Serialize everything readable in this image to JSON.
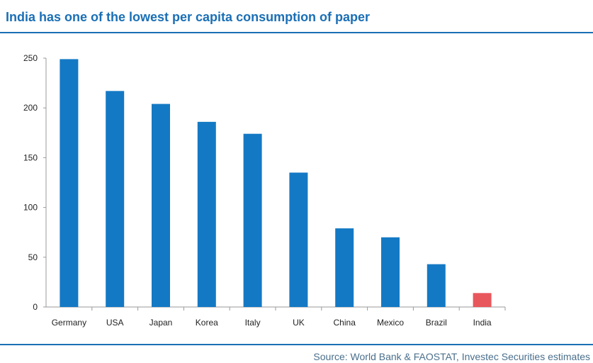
{
  "header": {
    "title": "India has one of the lowest per capita consumption of paper"
  },
  "footer": {
    "source": "Source: World Bank & FAOSTAT, Investec Securities estimates"
  },
  "colors": {
    "bar": "#1479c4",
    "highlight": "#e8575c",
    "accent": "#1a6fb5"
  },
  "chart_data": {
    "type": "bar",
    "title": "India has one of the lowest per capita consumption of paper",
    "xlabel": "",
    "ylabel": "",
    "ylim": [
      0,
      250
    ],
    "yticks": [
      0,
      50,
      100,
      150,
      200,
      250
    ],
    "grid": false,
    "legend": "none",
    "categories": [
      "Germany",
      "USA",
      "Japan",
      "Korea",
      "Italy",
      "UK",
      "China",
      "Mexico",
      "Brazil",
      "India"
    ],
    "values": [
      249,
      217,
      204,
      186,
      174,
      135,
      79,
      70,
      43,
      14
    ],
    "highlight_category": "India"
  }
}
